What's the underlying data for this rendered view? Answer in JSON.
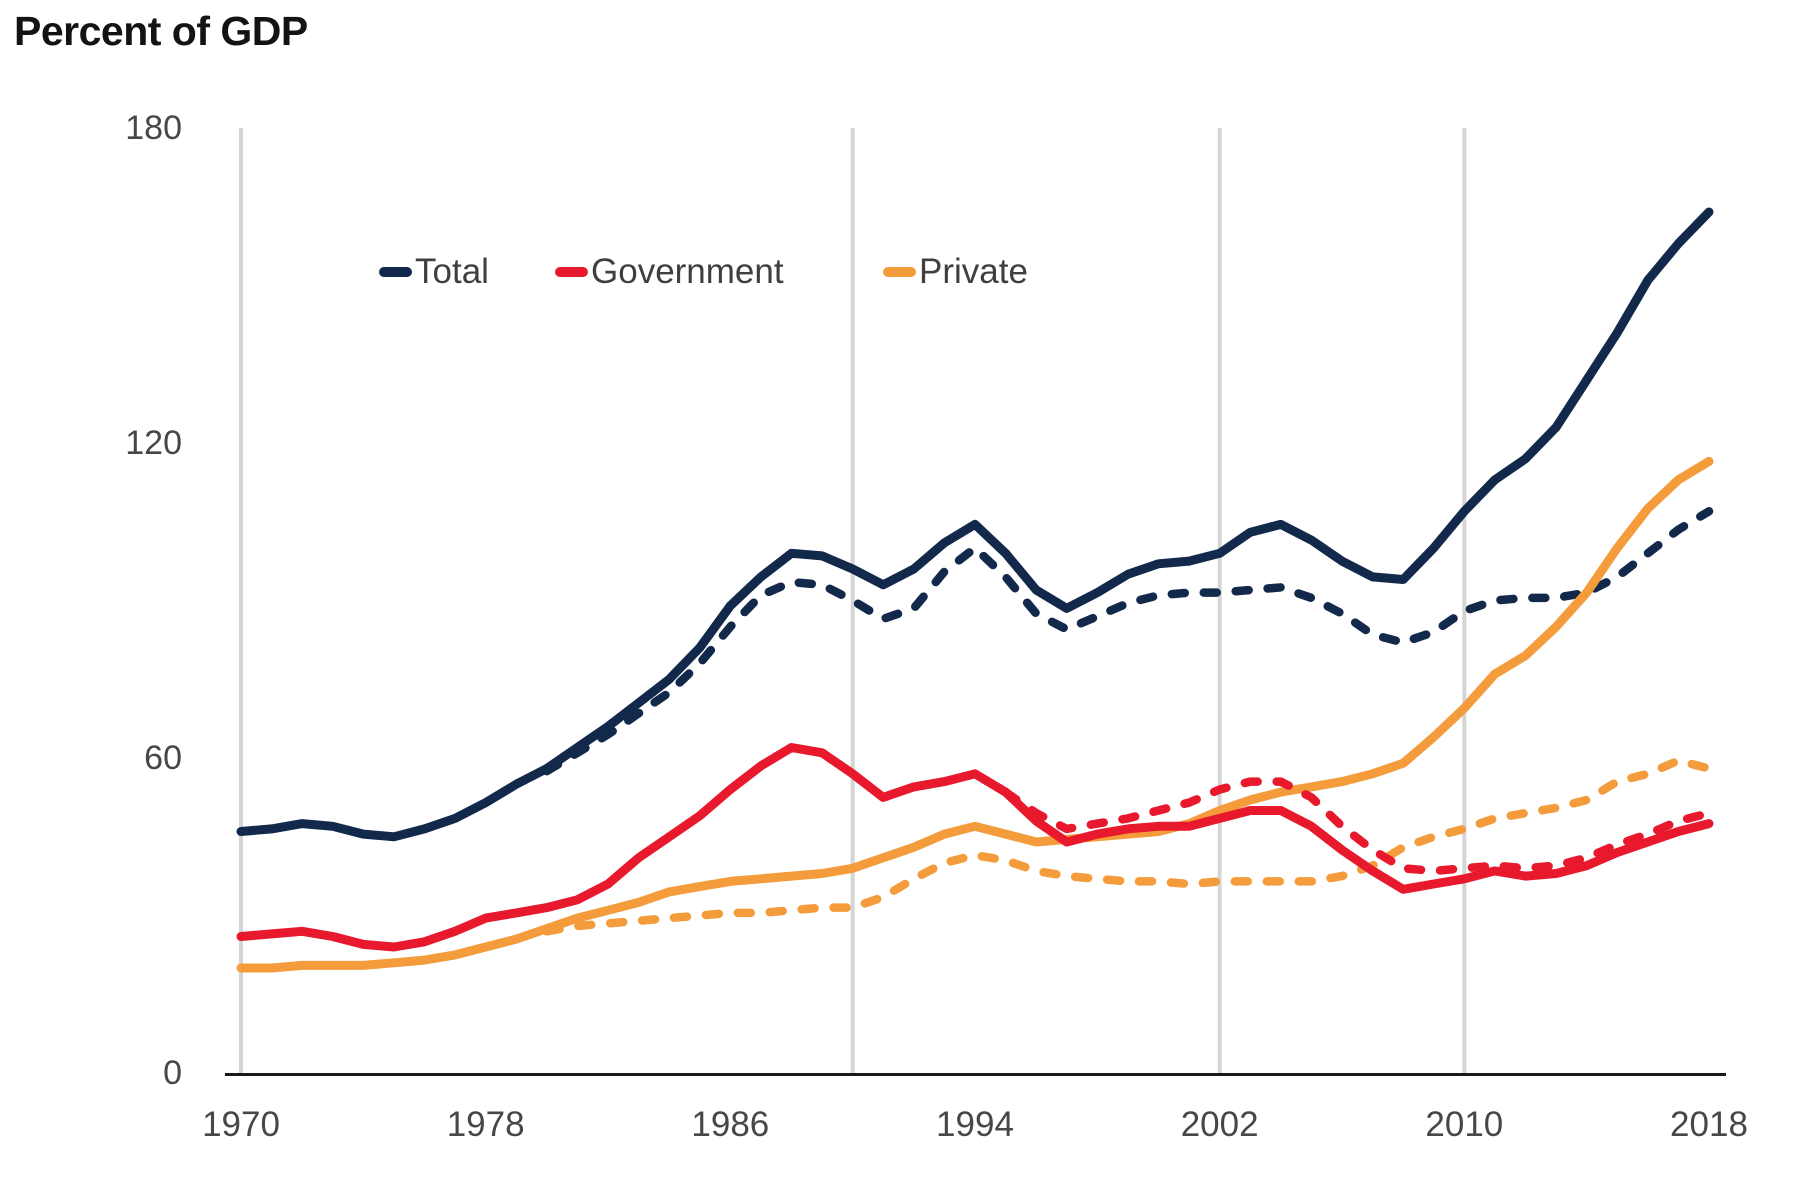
{
  "title": "Percent of GDP",
  "colors": {
    "total": "#13294B",
    "government": "#E8192D",
    "private": "#F49C3B",
    "gridline": "#D5D5D5",
    "axis_line": "#1A1A1A",
    "tick_text": "#474747",
    "title_text": "#131313"
  },
  "legend": [
    {
      "label": "Total",
      "color": "#13294B"
    },
    {
      "label": "Government",
      "color": "#E8192D"
    },
    {
      "label": "Private",
      "color": "#F49C3B"
    }
  ],
  "chart_data": {
    "type": "line",
    "title": "Percent of GDP",
    "xlabel": "",
    "ylabel": "Percent of GDP",
    "ylim": [
      0,
      180
    ],
    "xlim": [
      1970,
      2018
    ],
    "y_ticks": [
      0,
      60,
      120,
      180
    ],
    "x_ticks": [
      1970,
      1978,
      1986,
      1994,
      2002,
      2010,
      2018
    ],
    "gridline_years": [
      1970,
      1990,
      2002,
      2010
    ],
    "grid": "vertical-only",
    "legend_position": "top-inside",
    "series": [
      {
        "name": "Total",
        "style": "solid",
        "color": "#13294B",
        "start_year": 1970,
        "values": [
          46,
          46.5,
          47.5,
          47,
          45.5,
          45,
          46.5,
          48.5,
          51.5,
          55,
          58,
          62,
          66,
          70.5,
          75,
          81,
          89,
          94.5,
          99,
          98.5,
          96,
          93,
          96,
          101,
          104.5,
          99,
          92,
          88.5,
          91.5,
          95,
          97,
          97.5,
          99,
          103,
          104.5,
          101.5,
          97.5,
          94.5,
          94,
          100,
          107,
          113,
          117,
          123,
          132,
          141,
          151,
          158,
          164
        ]
      },
      {
        "name": "Total (dashed)",
        "style": "dashed",
        "color": "#13294B",
        "start_year": 1980,
        "values": [
          57.5,
          61,
          64.5,
          68.5,
          72.5,
          78,
          85,
          91,
          93.5,
          93,
          90,
          86.5,
          88.5,
          95.5,
          100,
          94.5,
          87.5,
          84.5,
          87,
          89.5,
          91,
          91.5,
          91.5,
          92,
          92.5,
          90.5,
          87.5,
          83.5,
          82,
          84,
          88,
          90,
          90.5,
          90.5,
          91.5,
          94.5,
          99,
          103.5,
          107
        ]
      },
      {
        "name": "Government",
        "style": "solid",
        "color": "#E8192D",
        "start_year": 1970,
        "values": [
          26,
          26.5,
          27,
          26,
          24.5,
          24,
          25,
          27,
          29.5,
          30.5,
          31.5,
          33,
          36,
          41,
          45,
          49,
          54,
          58.5,
          62,
          61,
          57,
          52.5,
          54.5,
          55.5,
          57,
          53.5,
          48,
          44,
          45.5,
          46.5,
          47,
          47,
          48.5,
          50,
          50,
          47,
          42.5,
          38.5,
          35,
          36,
          37,
          38.5,
          37.5,
          38,
          39.5,
          42,
          44,
          46,
          47.5
        ]
      },
      {
        "name": "Government (dashed)",
        "style": "dashed",
        "color": "#E8192D",
        "start_year": 1995,
        "values": [
          53.5,
          49.5,
          46.5,
          47.5,
          48.5,
          50,
          51.5,
          54,
          55.5,
          55.5,
          52.5,
          47,
          42.5,
          39,
          38.5,
          39,
          39.5,
          39,
          39.5,
          41,
          43.5,
          45.5,
          48,
          49.5
        ]
      },
      {
        "name": "Private",
        "style": "solid",
        "color": "#F49C3B",
        "start_year": 1970,
        "values": [
          20,
          20,
          20.5,
          20.5,
          20.5,
          21,
          21.5,
          22.5,
          24,
          25.5,
          27.5,
          29.5,
          31,
          32.5,
          34.5,
          35.5,
          36.5,
          37,
          37.5,
          38,
          39,
          41,
          43,
          45.5,
          47,
          45.5,
          44,
          44.5,
          45,
          45.5,
          46,
          47.5,
          50,
          52,
          53.5,
          54.5,
          55.5,
          57,
          59,
          64,
          69.5,
          76,
          79.5,
          85,
          91.5,
          100,
          107.5,
          113,
          116.5
        ]
      },
      {
        "name": "Private (dashed)",
        "style": "dashed",
        "color": "#F49C3B",
        "start_year": 1980,
        "values": [
          27,
          28,
          28.5,
          29,
          29.5,
          30,
          30.5,
          30.5,
          31,
          31.5,
          31.5,
          33.5,
          37,
          40,
          41.5,
          40.5,
          38.5,
          37.5,
          37,
          36.5,
          36.5,
          36,
          36.5,
          36.5,
          36.5,
          36.5,
          37.5,
          39.5,
          43,
          45,
          46.5,
          48.5,
          49.5,
          50.5,
          52,
          55.5,
          57,
          59.5,
          58
        ]
      }
    ]
  }
}
